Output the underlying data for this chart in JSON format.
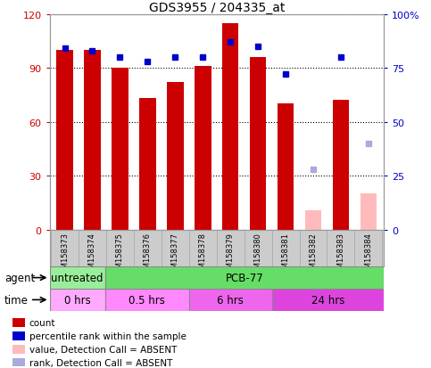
{
  "title": "GDS3955 / 204335_at",
  "samples": [
    "GSM158373",
    "GSM158374",
    "GSM158375",
    "GSM158376",
    "GSM158377",
    "GSM158378",
    "GSM158379",
    "GSM158380",
    "GSM158381",
    "GSM158382",
    "GSM158383",
    "GSM158384"
  ],
  "count_values": [
    100,
    100,
    90,
    73,
    82,
    91,
    115,
    96,
    70,
    11,
    72,
    20
  ],
  "rank_values": [
    84,
    83,
    80,
    78,
    80,
    80,
    87,
    85,
    72,
    28,
    80,
    40
  ],
  "absent_mask": [
    false,
    false,
    false,
    false,
    false,
    false,
    false,
    false,
    false,
    true,
    false,
    true
  ],
  "ylim_left": [
    0,
    120
  ],
  "ylim_right": [
    0,
    100
  ],
  "yticks_left": [
    0,
    30,
    60,
    90,
    120
  ],
  "yticks_right": [
    0,
    25,
    50,
    75,
    100
  ],
  "ytick_labels_right": [
    "0",
    "25",
    "50",
    "75",
    "100%"
  ],
  "bar_color_present": "#cc0000",
  "bar_color_absent": "#ffbbbb",
  "rank_color_present": "#0000cc",
  "rank_color_absent": "#aaaadd",
  "agent_row": [
    {
      "label": "untreated",
      "start": 0,
      "end": 2,
      "color": "#99ee99"
    },
    {
      "label": "PCB-77",
      "start": 2,
      "end": 12,
      "color": "#66dd66"
    }
  ],
  "time_row": [
    {
      "label": "0 hrs",
      "start": 0,
      "end": 2,
      "color": "#ffaaff"
    },
    {
      "label": "0.5 hrs",
      "start": 2,
      "end": 5,
      "color": "#ff88ff"
    },
    {
      "label": "6 hrs",
      "start": 5,
      "end": 8,
      "color": "#ee66ee"
    },
    {
      "label": "24 hrs",
      "start": 8,
      "end": 12,
      "color": "#dd44dd"
    }
  ],
  "legend": [
    {
      "label": "count",
      "color": "#cc0000"
    },
    {
      "label": "percentile rank within the sample",
      "color": "#0000cc"
    },
    {
      "label": "value, Detection Call = ABSENT",
      "color": "#ffbbbb"
    },
    {
      "label": "rank, Detection Call = ABSENT",
      "color": "#aaaadd"
    }
  ],
  "background_color": "#ffffff",
  "sample_area_color": "#cccccc"
}
